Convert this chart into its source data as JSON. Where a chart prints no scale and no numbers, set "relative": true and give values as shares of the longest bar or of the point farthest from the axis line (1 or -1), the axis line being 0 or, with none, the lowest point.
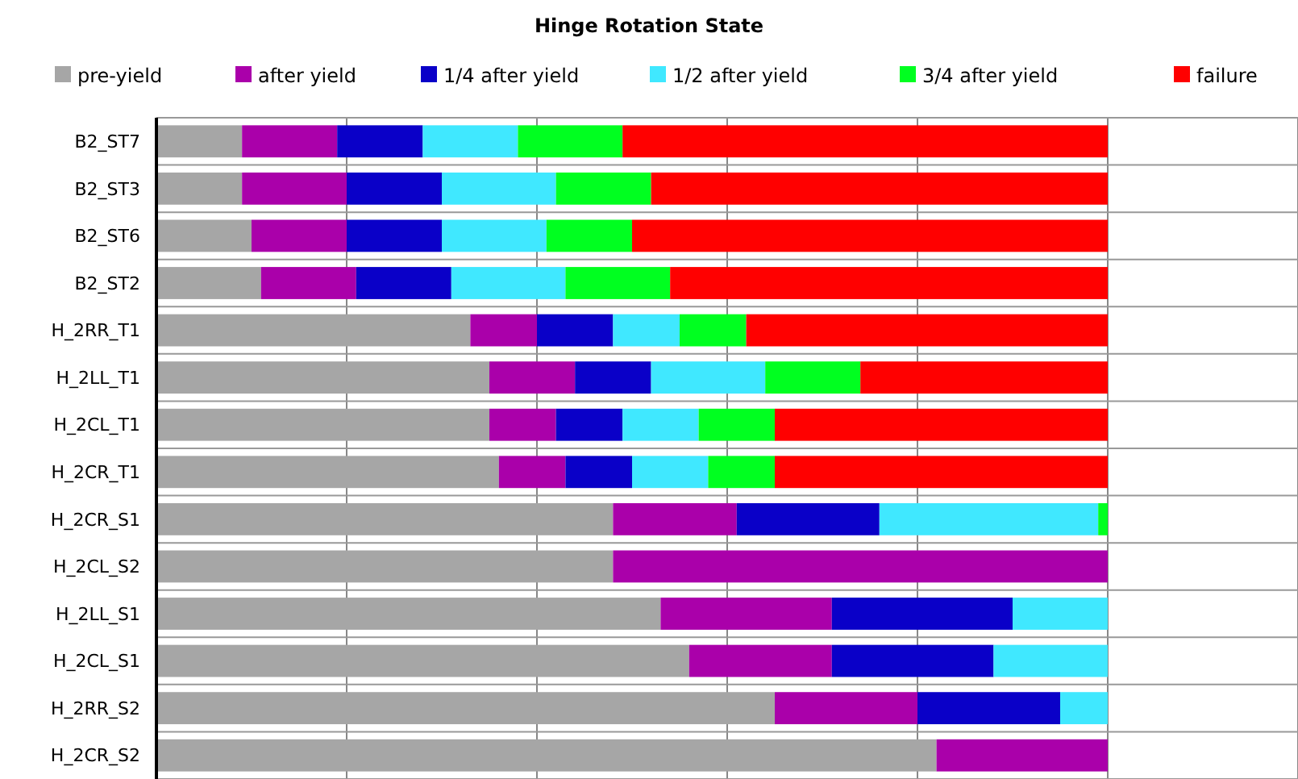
{
  "chart_data": {
    "type": "bar",
    "orientation": "horizontal",
    "stacked": true,
    "relative": true,
    "title": "Hinge Rotation State",
    "legend": "top",
    "grid": true,
    "categories": [
      "B2_ST7",
      "B2_ST3",
      "B2_ST6",
      "B2_ST2",
      "H_2RR_T1",
      "H_2LL_T1",
      "H_2CL_T1",
      "H_2CR_T1",
      "H_2CR_S1",
      "H_2CL_S2",
      "H_2LL_S1",
      "H_2CL_S1",
      "H_2RR_S2",
      "H_2CR_S2"
    ],
    "series": [
      {
        "name": "pre-yield",
        "color": "#a6a6a6",
        "values": [
          0.09,
          0.09,
          0.1,
          0.11,
          0.33,
          0.35,
          0.35,
          0.36,
          0.48,
          0.48,
          0.53,
          0.56,
          0.65,
          0.82
        ]
      },
      {
        "name": "after yield",
        "color": "#aa00aa",
        "values": [
          0.1,
          0.11,
          0.1,
          0.1,
          0.07,
          0.09,
          0.07,
          0.07,
          0.13,
          0.52,
          0.18,
          0.15,
          0.15,
          0.18
        ]
      },
      {
        "name": "1/4 after yield",
        "color": "#0a00c8",
        "values": [
          0.09,
          0.1,
          0.1,
          0.1,
          0.08,
          0.08,
          0.07,
          0.07,
          0.15,
          null,
          0.19,
          0.17,
          0.15,
          null
        ]
      },
      {
        "name": "1/2 after yield",
        "color": "#40e8ff",
        "values": [
          0.1,
          0.12,
          0.11,
          0.12,
          0.07,
          0.12,
          0.08,
          0.08,
          0.23,
          null,
          0.1,
          0.12,
          0.05,
          null
        ]
      },
      {
        "name": "3/4 after yield",
        "color": "#00ff20",
        "values": [
          0.11,
          0.1,
          0.09,
          0.11,
          0.07,
          0.1,
          0.08,
          0.07,
          0.01,
          null,
          null,
          null,
          null,
          null
        ]
      },
      {
        "name": "failure",
        "color": "#ff0000",
        "values": [
          0.51,
          0.48,
          0.5,
          0.46,
          0.38,
          0.26,
          0.35,
          0.35,
          null,
          null,
          null,
          null,
          null,
          null
        ]
      }
    ]
  }
}
